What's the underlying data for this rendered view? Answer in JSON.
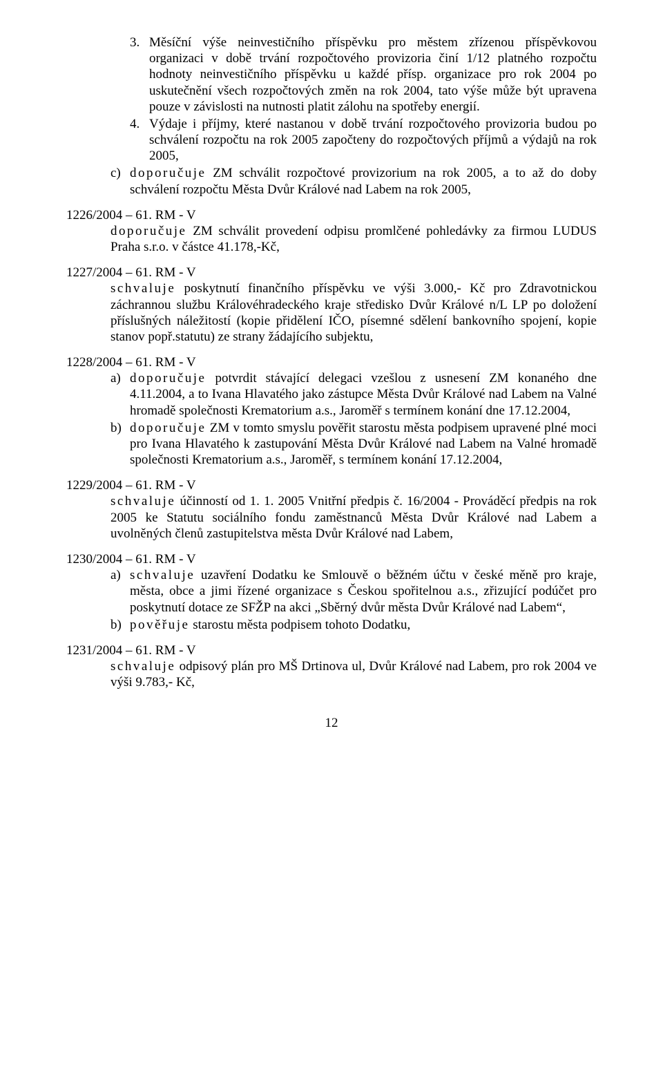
{
  "p3_num": "3.",
  "p3_text": "Měsíční výše neinvestičního příspěvku pro městem zřízenou příspěvkovou organizaci v době trvání rozpočtového provizoria činí 1/12 platného rozpočtu hodnoty neinvestičního příspěvku u každé přísp. organizace pro rok 2004 po uskutečnění všech rozpočtových změn na rok 2004, tato výše může být upravena pouze v závislosti na nutnosti platit zálohu na spotřeby energií.",
  "p4_num": "4.",
  "p4_text": "Výdaje i příjmy, které nastanou v době trvání rozpočtového provizoria budou po schválení rozpočtu na rok 2005 započteny do rozpočtových příjmů a výdajů na rok 2005,",
  "pc_let": "c)",
  "pc_text_pre": "doporučuje",
  "pc_text_post": " ZM schválit rozpočtové provizorium na rok 2005, a to až do doby  schválení rozpočtu Města Dvůr Králové nad Labem na rok 2005,",
  "h1226": "1226/2004 – 61. RM - V",
  "b1226_pre": "doporučuje",
  "b1226_post": " ZM schválit provedení odpisu promlčené pohledávky za firmou LUDUS Praha s.r.o. v částce 41.178,-Kč,",
  "h1227": "1227/2004 – 61. RM - V",
  "b1227_pre": "schvaluje",
  "b1227_post": "  poskytnutí finančního příspěvku ve výši 3.000,- Kč pro Zdravotnickou záchrannou službu Královéhradeckého kraje středisko Dvůr Králové n/L LP po doložení příslušných náležitostí (kopie přidělení IČO, písemné sdělení bankovního spojení, kopie stanov popř.statutu) ze strany žádajícího subjektu,",
  "h1228": "1228/2004 – 61. RM  - V",
  "b1228a_let": "a)",
  "b1228a_pre": "doporučuje",
  "b1228a_post": "  potvrdit stávající delegaci vzešlou z usnesení ZM konaného dne 4.11.2004, a to Ivana Hlavatého jako zástupce Města Dvůr Králové nad Labem na Valné hromadě společnosti Krematorium a.s., Jaroměř s termínem konání dne 17.12.2004,",
  "b1228b_let": "b)",
  "b1228b_pre": "doporučuje",
  "b1228b_post": " ZM v tomto smyslu pověřit starostu města podpisem upravené  plné moci pro Ivana Hlavatého k zastupování Města Dvůr Králové nad Labem na Valné hromadě společnosti Krematorium a.s., Jaroměř, s termínem konání 17.12.2004,",
  "h1229": "1229/2004 – 61. RM - V",
  "b1229_pre": "schvaluje",
  "b1229_post": " účinností od 1. 1. 2005 Vnitřní předpis č. 16/2004 - Prováděcí předpis na rok 2005 ke Statutu sociálního fondu zaměstnanců Města Dvůr Králové nad Labem a uvolněných členů zastupitelstva města Dvůr Králové nad Labem,",
  "h1230": "1230/2004 – 61. RM - V",
  "b1230a_let": "a)",
  "b1230a_pre": "schvaluje",
  "b1230a_post": " uzavření Dodatku ke Smlouvě o běžném účtu v české měně pro kraje, města, obce a jimi řízené organizace s Českou spořitelnou a.s., zřizující podúčet pro poskytnutí dotace ze SFŽP na akci „Sběrný dvůr města Dvůr Králové nad Labem“,",
  "b1230b_let": "b)",
  "b1230b_pre": "pověřuje",
  "b1230b_post": "  starostu města podpisem tohoto Dodatku,",
  "h1231": "1231/2004 – 61. RM - V",
  "b1231_pre": "schvaluje",
  "b1231_post": " odpisový plán pro MŠ Drtinova ul, Dvůr Králové nad Labem, pro rok 2004 ve výši 9.783,- Kč,",
  "pagenum": "12"
}
